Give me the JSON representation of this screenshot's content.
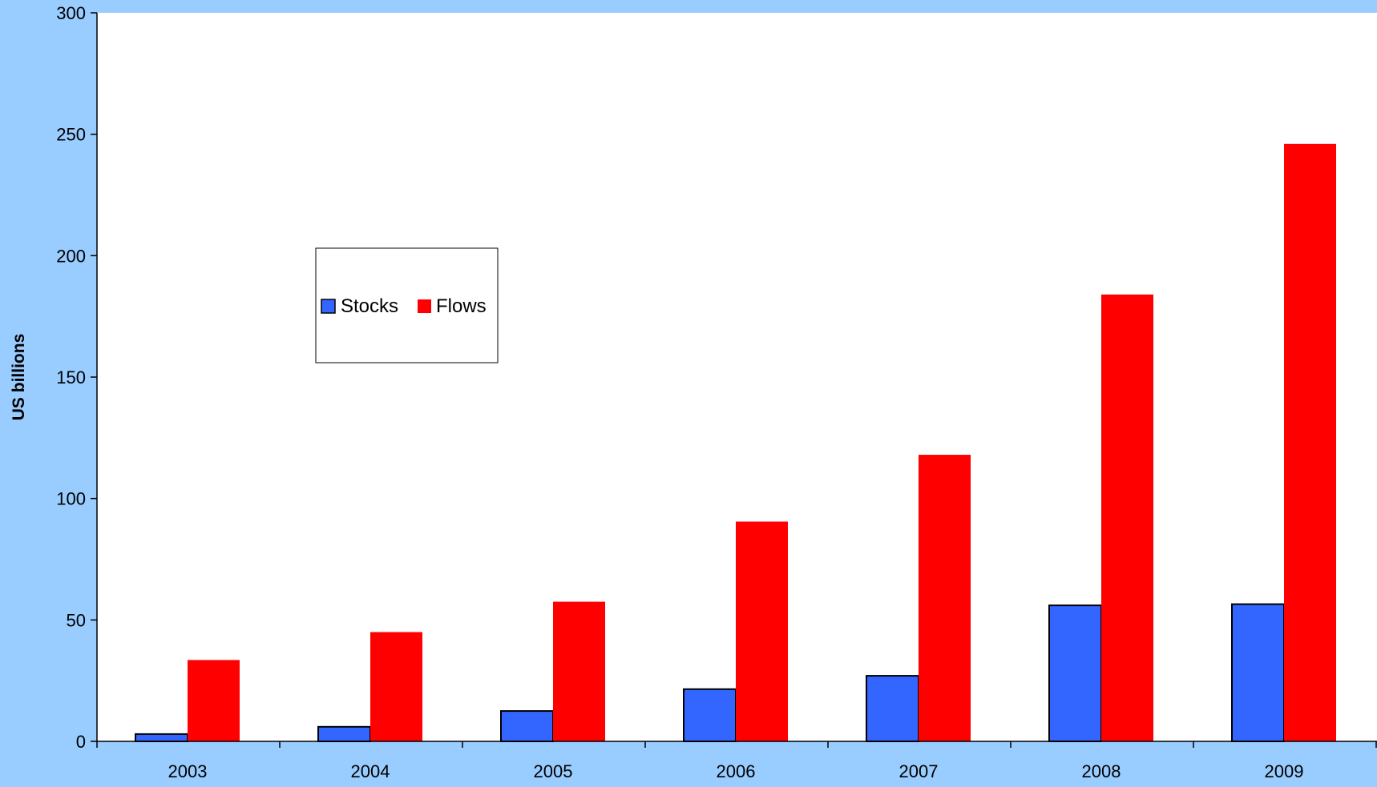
{
  "page": {
    "background_color": "#99ccff",
    "plot_background_color": "#ffffff"
  },
  "chart_data": {
    "type": "bar",
    "title": "",
    "xlabel": "",
    "ylabel": "US billions",
    "ylim": [
      0,
      300
    ],
    "yticks": [
      0,
      50,
      100,
      150,
      200,
      250,
      300
    ],
    "grid": false,
    "legend_position": "left-middle inside plot",
    "categories": [
      "2003",
      "2004",
      "2005",
      "2006",
      "2007",
      "2008",
      "2009"
    ],
    "series": [
      {
        "name": "Stocks",
        "color": "#3366ff",
        "values": [
          3,
          6,
          12.5,
          21.5,
          27,
          56,
          56.5
        ]
      },
      {
        "name": "Flows",
        "color": "#ff0000",
        "values": [
          33.5,
          45,
          57.5,
          90.5,
          118,
          184,
          246
        ]
      }
    ]
  }
}
